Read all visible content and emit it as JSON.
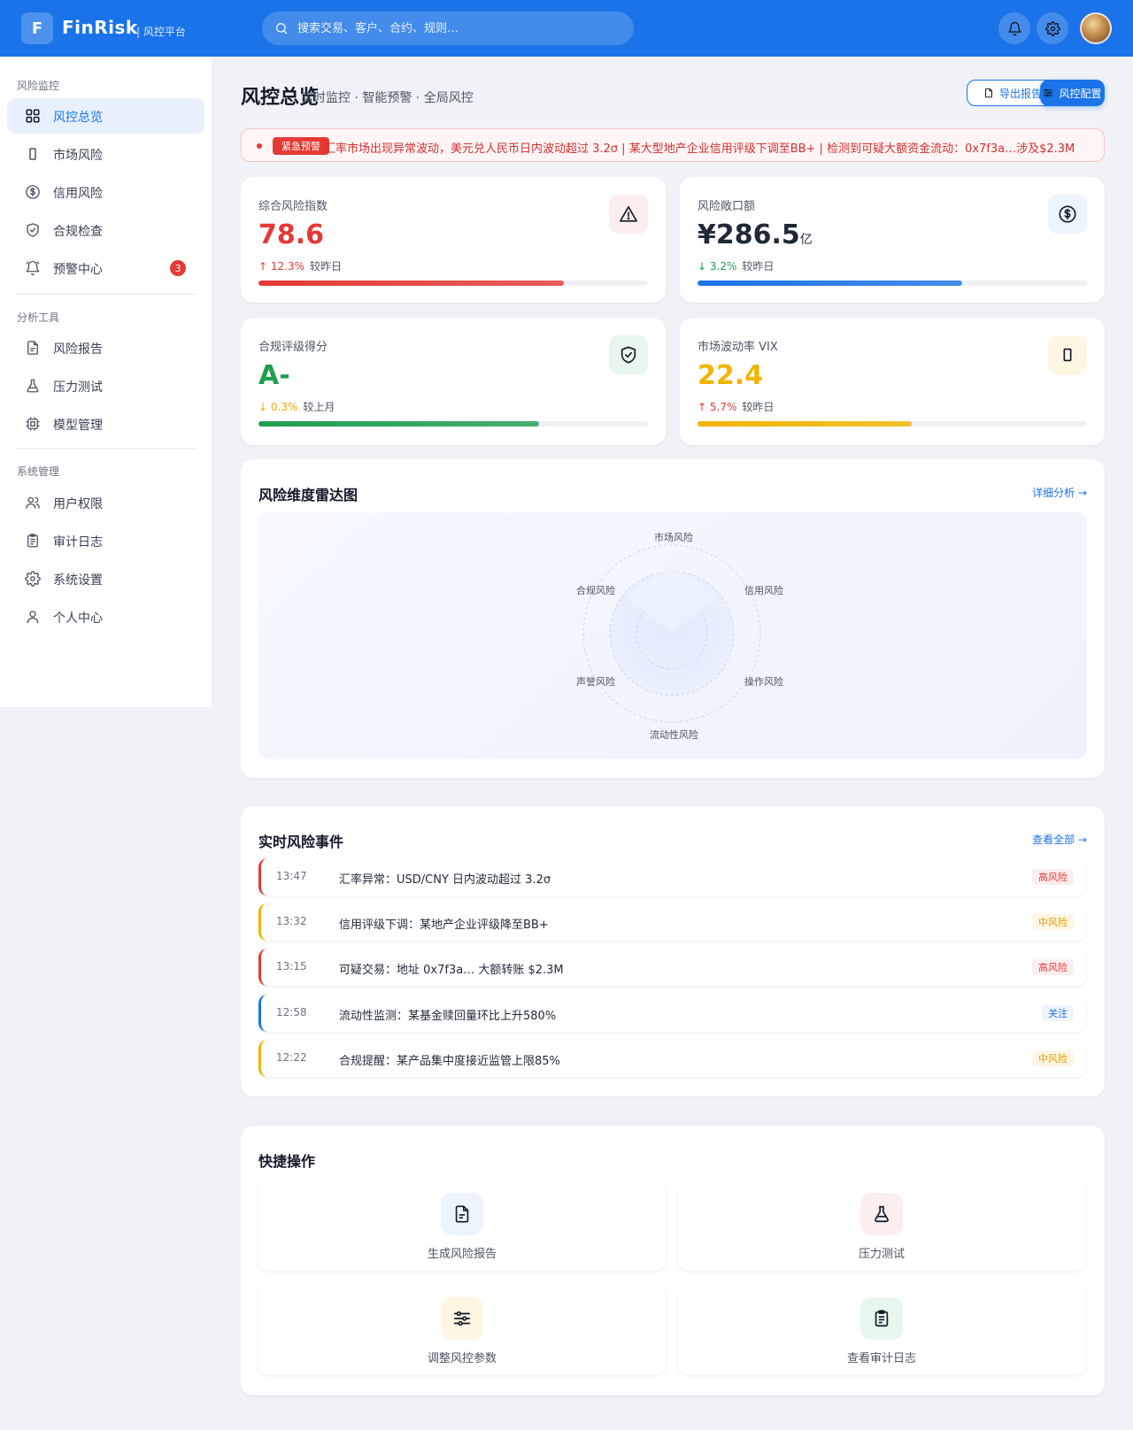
{
  "header": {
    "logo_letter": "F",
    "brand": "FinRisk",
    "brand_sub": "| 风控平台",
    "search_placeholder": "搜索交易、客户、合约、规则…"
  },
  "sidebar": {
    "sections": [
      {
        "title": "风险监控"
      },
      {
        "title": "分析工具"
      },
      {
        "title": "系统管理"
      }
    ],
    "items": [
      {
        "label": "风控总览",
        "icon": "grid-icon"
      },
      {
        "label": "市场风险",
        "icon": "trend-icon"
      },
      {
        "label": "信用风险",
        "icon": "dollar-icon"
      },
      {
        "label": "合规检查",
        "icon": "shield-icon"
      },
      {
        "label": "预警中心",
        "icon": "bell-icon",
        "badge": "3"
      },
      {
        "label": "风险报告",
        "icon": "document-icon"
      },
      {
        "label": "压力测试",
        "icon": "flask-icon"
      },
      {
        "label": "模型管理",
        "icon": "chip-icon"
      },
      {
        "label": "用户权限",
        "icon": "users-icon"
      },
      {
        "label": "审计日志",
        "icon": "clipboard-icon"
      },
      {
        "label": "系统设置",
        "icon": "gear-icon"
      },
      {
        "label": "个人中心",
        "icon": "user-icon"
      }
    ]
  },
  "page": {
    "title": "风控总览",
    "subtitle": "实时监控 · 智能预警 · 全局风控",
    "export_label": "导出报告",
    "config_label": "风控配置"
  },
  "alert": {
    "tag": "紧急预警",
    "text": "汇率市场出现异常波动，美元兑人民币日内波动超过 3.2σ | 某大型地产企业信用评级下调至BB+ | 检测到可疑大额资金流动：0x7f3a…涉及$2.3M"
  },
  "kpis": [
    {
      "label": "综合风险指数",
      "value": "78.6",
      "unit": "",
      "trend": "↑ 12.3%",
      "vs": "较昨日",
      "progress": 0.785,
      "color": "#e53935",
      "trend_color": "#e53935",
      "icon": "warning-icon"
    },
    {
      "label": "风险敞口额",
      "value": "¥286.5",
      "unit": "亿",
      "trend": "↓ 3.2%",
      "vs": "较昨日",
      "progress": 0.68,
      "color": "#1a73e8",
      "trend_color": "#1e9e4f",
      "icon": "dollar-icon"
    },
    {
      "label": "合规评级得分",
      "value": "A-",
      "unit": "",
      "trend": "↓ 0.3%",
      "vs": "较上月",
      "progress": 0.72,
      "color": "#1e9e4f",
      "trend_color": "#f2a900",
      "icon": "shield-check-icon"
    },
    {
      "label": "市场波动率 VIX",
      "value": "22.4",
      "unit": "",
      "trend": "↑ 5.7%",
      "vs": "较昨日",
      "progress": 0.55,
      "color": "#f2b400",
      "trend_color": "#e53935",
      "icon": "trend-icon"
    }
  ],
  "radar": {
    "title": "风险维度雷达图",
    "link": "详细分析 →",
    "axes": [
      "市场风险",
      "信用风险",
      "流动性风险",
      "操作风险",
      "合规风险",
      "声誉风险"
    ]
  },
  "events": {
    "title": "实时风险事件",
    "link": "查看全部 →",
    "items": [
      {
        "time": "13:47",
        "text": "汇率异常：USD/CNY 日内波动超过 3.2σ",
        "tag": "高风险",
        "level": "high"
      },
      {
        "time": "13:32",
        "text": "信用评级下调：某地产企业评级降至BB+",
        "tag": "中风险",
        "level": "medium"
      },
      {
        "time": "13:15",
        "text": "可疑交易：地址 0x7f3a… 大额转账 $2.3M",
        "tag": "高风险",
        "level": "high"
      },
      {
        "time": "12:58",
        "text": "流动性监测：某基金赎回量环比上升580%",
        "tag": "关注",
        "level": "info"
      },
      {
        "time": "12:22",
        "text": "合规提醒：某产品集中度接近监管上限85%",
        "tag": "中风险",
        "level": "medium"
      }
    ]
  },
  "quick": {
    "title": "快捷操作",
    "items": [
      {
        "label": "生成风险报告",
        "icon": "document-icon",
        "bg": "#eef4fe"
      },
      {
        "label": "压力测试",
        "icon": "flask-icon",
        "bg": "#fdeeee"
      },
      {
        "label": "调整风控参数",
        "icon": "sliders-icon",
        "bg": "#fdf6e3"
      },
      {
        "label": "查看审计日志",
        "icon": "clipboard-icon",
        "bg": "#e8f7ee"
      }
    ]
  }
}
